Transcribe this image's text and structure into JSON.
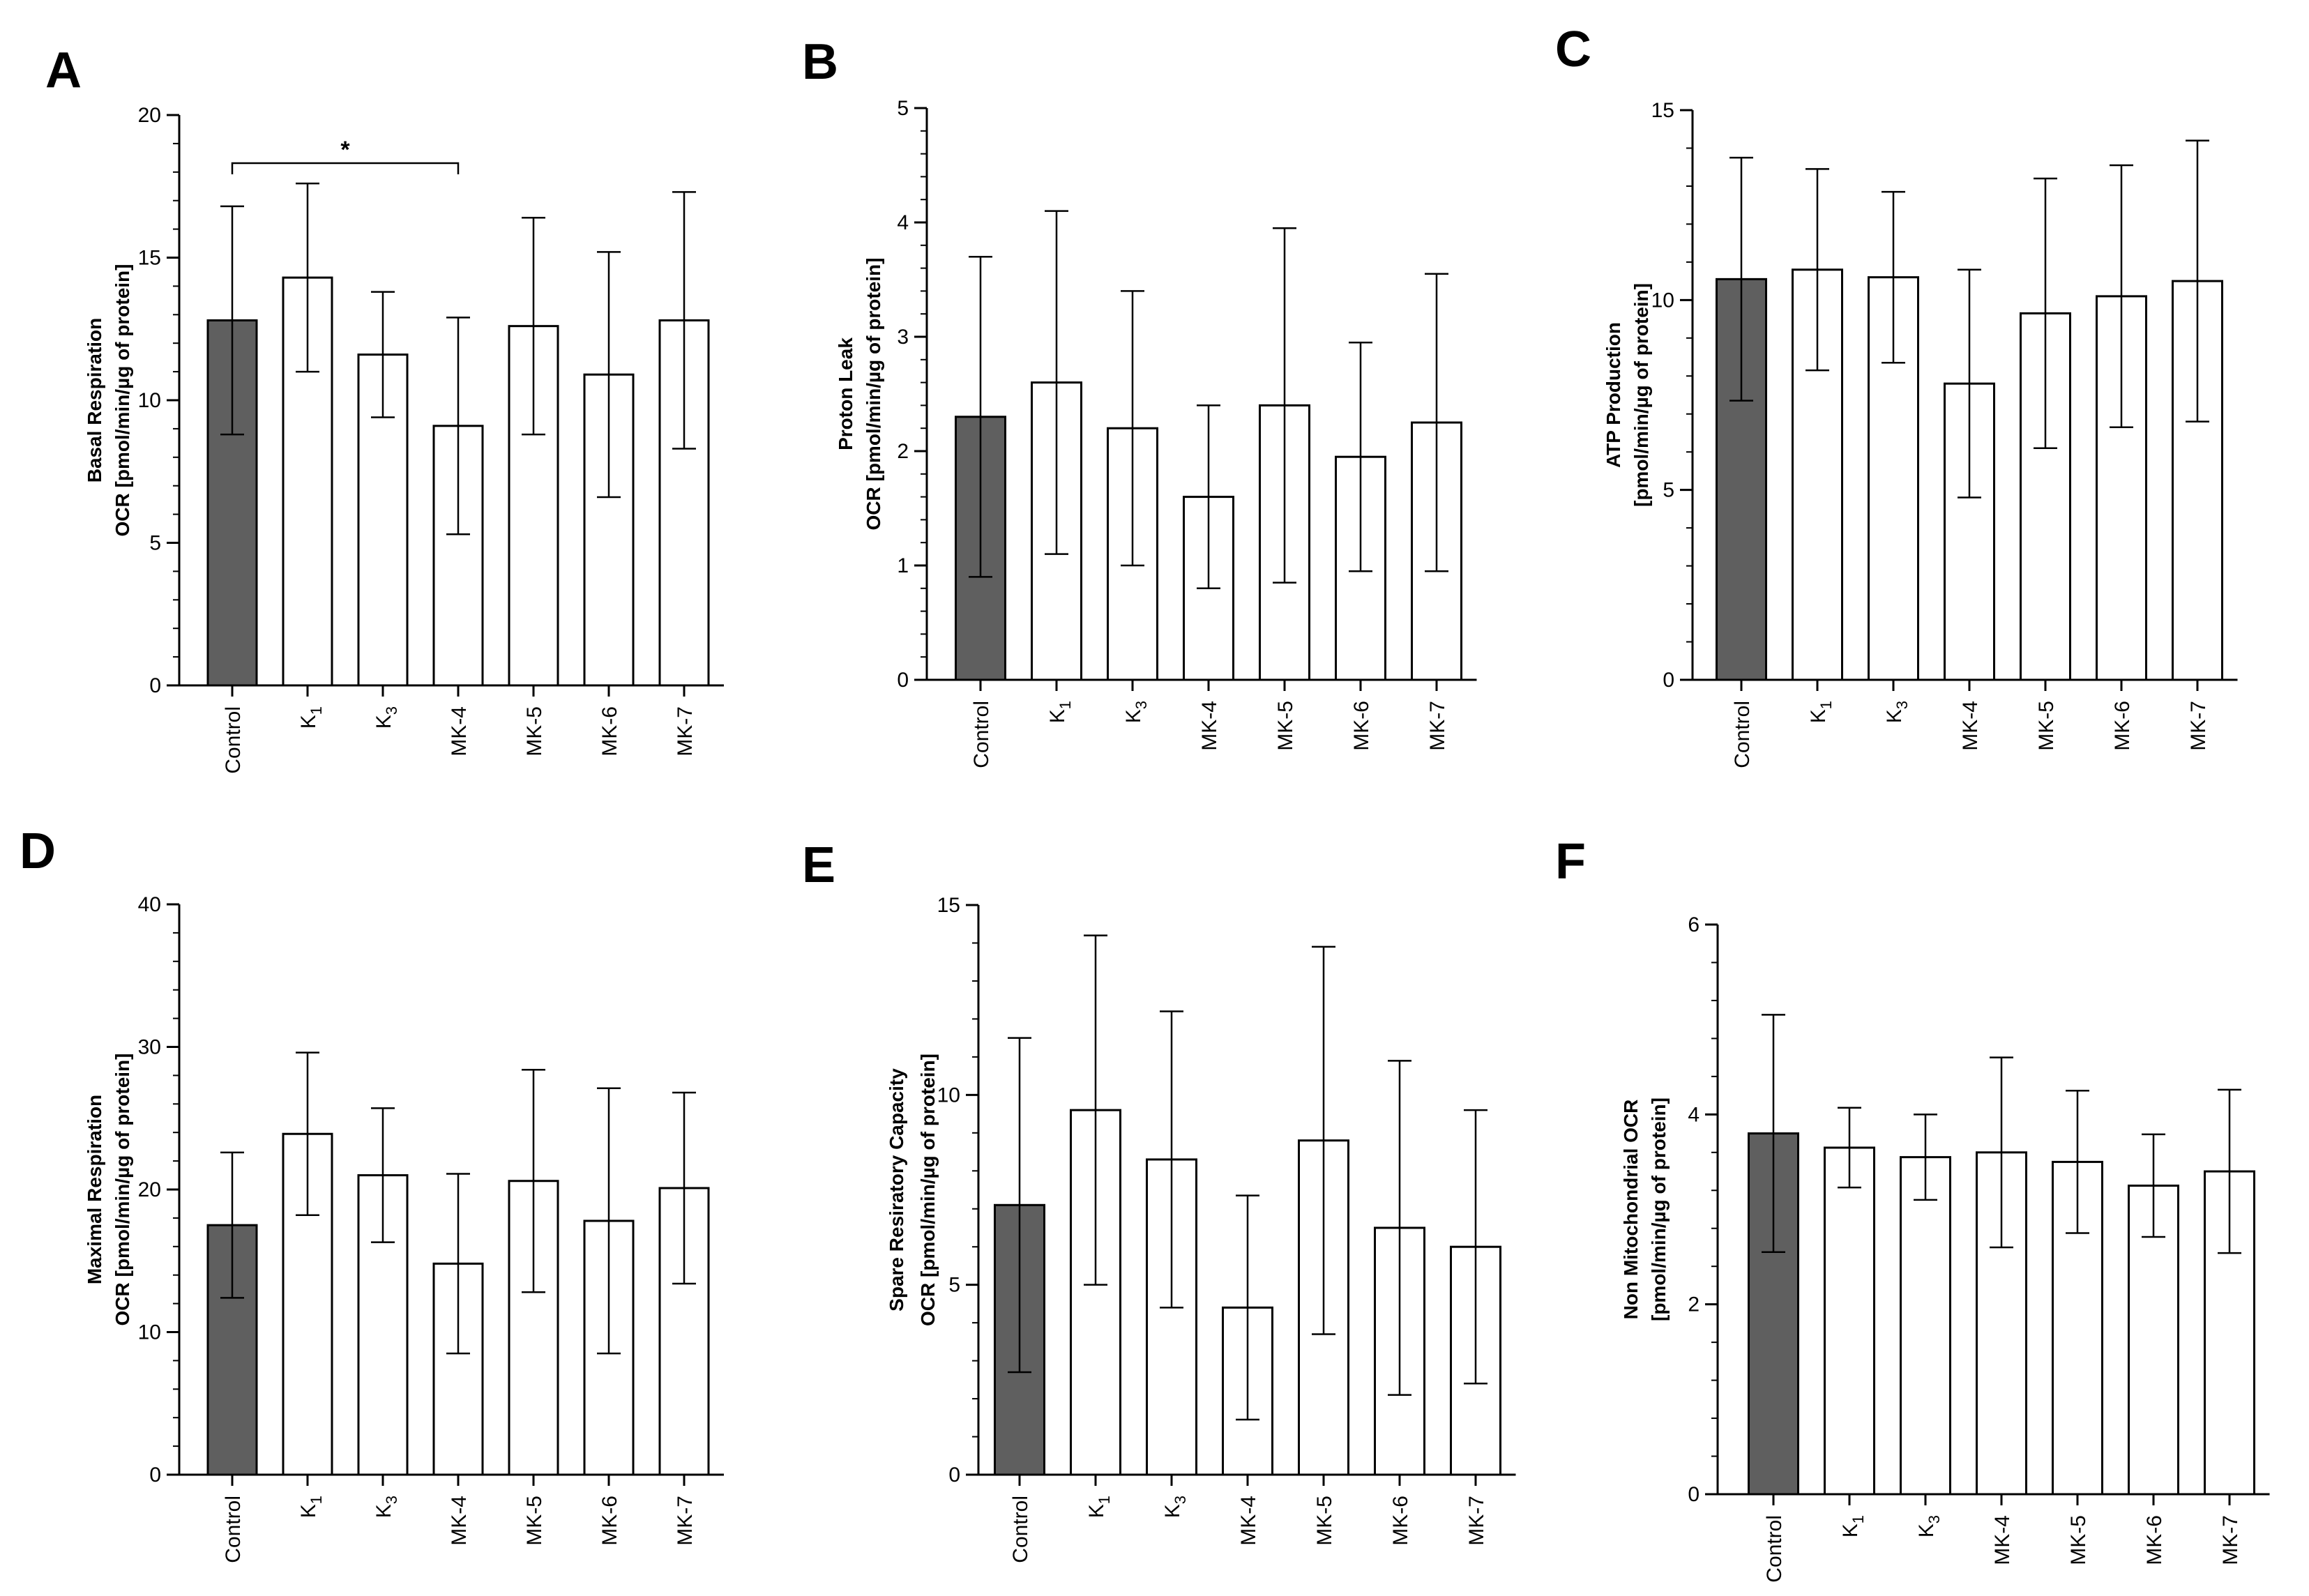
{
  "colors": {
    "control": "#5f5f5f",
    "treatment": "#ffffff",
    "stroke": "#000000"
  },
  "chart_data": [
    {
      "panel": "A",
      "type": "bar",
      "ylabel_lines": [
        "Basal Respiration",
        "OCR [pmol/min/µg of protein]"
      ],
      "categories": [
        "Control",
        "K1",
        "K3",
        "MK-4",
        "MK-5",
        "MK-6",
        "MK-7"
      ],
      "values": [
        12.8,
        14.3,
        11.6,
        9.1,
        12.6,
        10.9,
        12.8
      ],
      "errors": [
        4.0,
        3.3,
        2.2,
        3.8,
        3.8,
        4.3,
        4.5
      ],
      "ylim": [
        0,
        20
      ],
      "major_ticks": [
        0,
        5,
        10,
        15,
        20
      ],
      "minor_step": 1,
      "significance": [
        {
          "from": 0,
          "to": 3,
          "label": "*"
        }
      ]
    },
    {
      "panel": "B",
      "type": "bar",
      "ylabel_lines": [
        "Proton Leak",
        "OCR [pmol/min/µg of protein]"
      ],
      "categories": [
        "Control",
        "K1",
        "K3",
        "MK-4",
        "MK-5",
        "MK-6",
        "MK-7"
      ],
      "values": [
        2.3,
        2.6,
        2.2,
        1.6,
        2.4,
        1.95,
        2.25
      ],
      "errors": [
        1.4,
        1.5,
        1.2,
        0.8,
        1.55,
        1.0,
        1.3
      ],
      "ylim": [
        0,
        5
      ],
      "major_ticks": [
        0,
        1,
        2,
        3,
        4,
        5
      ],
      "minor_step": 0.2
    },
    {
      "panel": "C",
      "type": "bar",
      "ylabel_lines": [
        "ATP Production",
        "[pmol/min/µg of protein]"
      ],
      "categories": [
        "Control",
        "K1",
        "K3",
        "MK-4",
        "MK-5",
        "MK-6",
        "MK-7"
      ],
      "values": [
        10.55,
        10.8,
        10.6,
        7.8,
        9.65,
        10.1,
        10.5
      ],
      "errors": [
        3.2,
        2.65,
        2.25,
        3.0,
        3.55,
        3.45,
        3.7
      ],
      "ylim": [
        0,
        15
      ],
      "major_ticks": [
        0,
        5,
        10,
        15
      ],
      "minor_step": 1
    },
    {
      "panel": "D",
      "type": "bar",
      "ylabel_lines": [
        "Maximal Respiration",
        "OCR [pmol/min/µg of protein]"
      ],
      "categories": [
        "Control",
        "K1",
        "K3",
        "MK-4",
        "MK-5",
        "MK-6",
        "MK-7"
      ],
      "values": [
        17.5,
        23.9,
        21.0,
        14.8,
        20.6,
        17.8,
        20.1
      ],
      "errors": [
        5.1,
        5.7,
        4.7,
        6.3,
        7.8,
        9.3,
        6.7
      ],
      "ylim": [
        0,
        40
      ],
      "major_ticks": [
        0,
        10,
        20,
        30,
        40
      ],
      "minor_step": 2
    },
    {
      "panel": "E",
      "type": "bar",
      "ylabel_lines": [
        "Spare Resiratory Capacity",
        "OCR [pmol/min/µg of protein]"
      ],
      "categories": [
        "Control",
        "K1",
        "K3",
        "MK-4",
        "MK-5",
        "MK-6",
        "MK-7"
      ],
      "values": [
        7.1,
        9.6,
        8.3,
        4.4,
        8.8,
        6.5,
        6.0
      ],
      "errors": [
        4.4,
        4.6,
        3.9,
        2.95,
        5.1,
        4.4,
        3.6
      ],
      "ylim": [
        0,
        15
      ],
      "major_ticks": [
        0,
        5,
        10,
        15
      ],
      "minor_step": 1
    },
    {
      "panel": "F",
      "type": "bar",
      "ylabel_lines": [
        "Non Mitochondrial OCR",
        "[pmol/min/µg of protein]"
      ],
      "categories": [
        "Control",
        "K1",
        "K3",
        "MK-4",
        "MK-5",
        "MK-6",
        "MK-7"
      ],
      "values": [
        3.8,
        3.65,
        3.55,
        3.6,
        3.5,
        3.25,
        3.4
      ],
      "errors": [
        1.25,
        0.42,
        0.45,
        1.0,
        0.75,
        0.54,
        0.86
      ],
      "ylim": [
        0,
        6
      ],
      "major_ticks": [
        0,
        2,
        4,
        6
      ],
      "minor_step": 0.4
    }
  ]
}
